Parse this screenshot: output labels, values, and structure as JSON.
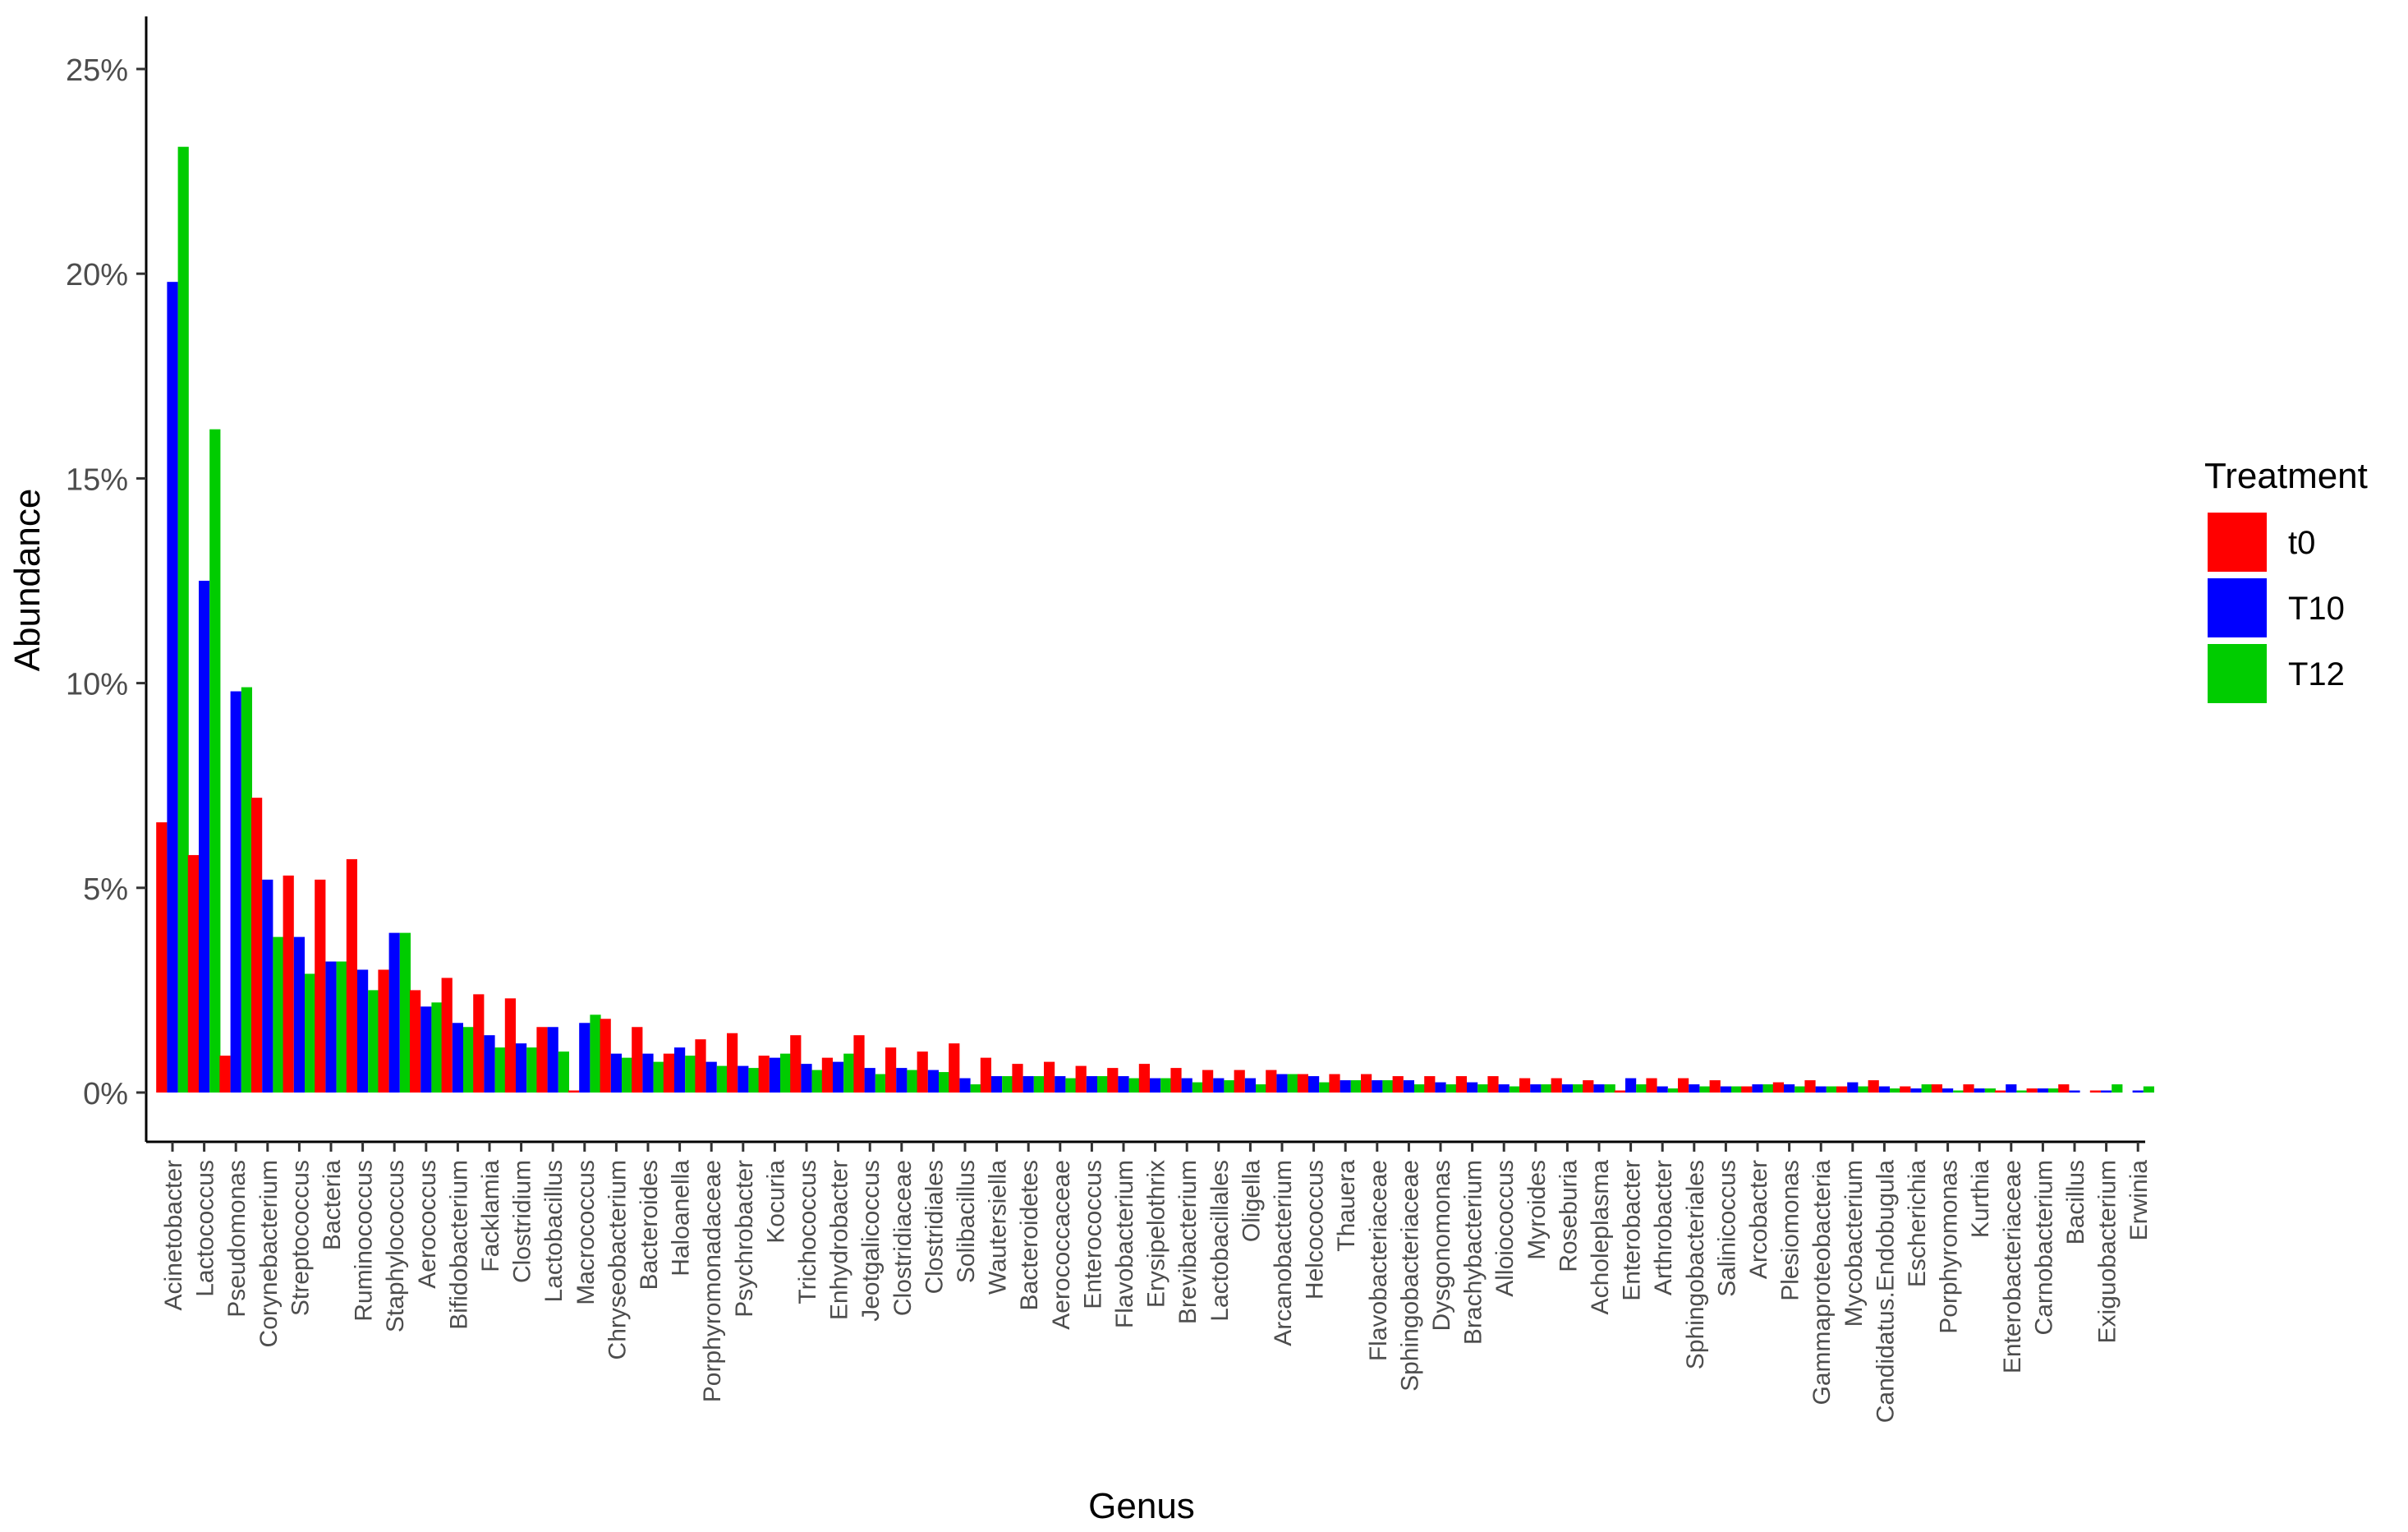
{
  "chart_data": {
    "type": "bar",
    "xlabel": "Genus",
    "ylabel": "Abundance",
    "ylim": [
      0,
      25
    ],
    "yticks": [
      0,
      5,
      10,
      15,
      20,
      25
    ],
    "yticks_labels": [
      "0%",
      "5%",
      "10%",
      "15%",
      "20%",
      "25%"
    ],
    "grid": false,
    "legend": {
      "title": "Treatment",
      "position": "right"
    },
    "categories": [
      "Acinetobacter",
      "Lactococcus",
      "Pseudomonas",
      "Corynebacterium",
      "Streptococcus",
      "Bacteria",
      "Ruminococcus",
      "Staphylococcus",
      "Aerococcus",
      "Bifidobacterium",
      "Facklamia",
      "Clostridium",
      "Lactobacillus",
      "Macrococcus",
      "Chryseobacterium",
      "Bacteroides",
      "Haloanella",
      "Porphyromonadaceae",
      "Psychrobacter",
      "Kocuria",
      "Trichococcus",
      "Enhydrobacter",
      "Jeotgalicoccus",
      "Clostridiaceae",
      "Clostridiales",
      "Solibacillus",
      "Wautersiella",
      "Bacteroidetes",
      "Aerococcaceae",
      "Enterococcus",
      "Flavobacterium",
      "Erysipelothrix",
      "Brevibacterium",
      "Lactobacillales",
      "Oligella",
      "Arcanobacterium",
      "Helcococcus",
      "Thauera",
      "Flavobacteriaceae",
      "Sphingobacteriaceae",
      "Dysgonomonas",
      "Brachybacterium",
      "Alloiococcus",
      "Myroides",
      "Roseburia",
      "Acholeplasma",
      "Enterobacter",
      "Arthrobacter",
      "Sphingobacteriales",
      "Salinicoccus",
      "Arcobacter",
      "Plesiomonas",
      "Gammaproteobacteria",
      "Mycobacterium",
      "Candidatus.Endobugula",
      "Escherichia",
      "Porphyromonas",
      "Kurthia",
      "Enterobacteriaceae",
      "Carnobacterium",
      "Bacillus",
      "Exiguobacterium",
      "Erwinia"
    ],
    "series": [
      {
        "name": "t0",
        "color": "#ff0000",
        "values": [
          6.6,
          5.8,
          0.9,
          7.2,
          5.3,
          5.2,
          5.7,
          3.0,
          2.5,
          2.8,
          2.4,
          2.3,
          1.6,
          0.05,
          1.8,
          1.6,
          0.95,
          1.3,
          1.45,
          0.9,
          1.4,
          0.85,
          1.4,
          1.1,
          1.0,
          1.2,
          0.85,
          0.7,
          0.75,
          0.65,
          0.6,
          0.7,
          0.6,
          0.55,
          0.55,
          0.55,
          0.45,
          0.45,
          0.45,
          0.4,
          0.4,
          0.4,
          0.4,
          0.35,
          0.35,
          0.3,
          0.05,
          0.35,
          0.35,
          0.3,
          0.15,
          0.25,
          0.3,
          0.15,
          0.3,
          0.15,
          0.2,
          0.2,
          0.05,
          0.1,
          0.2,
          0.05,
          0.0
        ]
      },
      {
        "name": "T10",
        "color": "#0000ff",
        "values": [
          19.8,
          12.5,
          9.8,
          5.2,
          3.8,
          3.2,
          3.0,
          3.9,
          2.1,
          1.7,
          1.4,
          1.2,
          1.6,
          1.7,
          0.95,
          0.95,
          1.1,
          0.75,
          0.65,
          0.85,
          0.7,
          0.75,
          0.6,
          0.6,
          0.55,
          0.35,
          0.4,
          0.4,
          0.4,
          0.4,
          0.4,
          0.35,
          0.35,
          0.35,
          0.35,
          0.45,
          0.4,
          0.3,
          0.3,
          0.3,
          0.25,
          0.25,
          0.2,
          0.2,
          0.2,
          0.2,
          0.35,
          0.15,
          0.2,
          0.15,
          0.2,
          0.2,
          0.15,
          0.25,
          0.15,
          0.1,
          0.1,
          0.1,
          0.2,
          0.1,
          0.05,
          0.05,
          0.05
        ]
      },
      {
        "name": "T12",
        "color": "#00cc00",
        "values": [
          23.1,
          16.2,
          9.9,
          3.8,
          2.9,
          3.2,
          2.5,
          3.9,
          2.2,
          1.6,
          1.1,
          1.1,
          1.0,
          1.9,
          0.85,
          0.75,
          0.9,
          0.65,
          0.6,
          0.95,
          0.55,
          0.95,
          0.45,
          0.55,
          0.5,
          0.2,
          0.4,
          0.4,
          0.35,
          0.4,
          0.35,
          0.35,
          0.25,
          0.3,
          0.2,
          0.45,
          0.25,
          0.3,
          0.3,
          0.2,
          0.2,
          0.2,
          0.15,
          0.2,
          0.2,
          0.2,
          0.2,
          0.1,
          0.15,
          0.15,
          0.2,
          0.15,
          0.15,
          0.15,
          0.1,
          0.2,
          0.05,
          0.1,
          0.05,
          0.1,
          0.0,
          0.2,
          0.15
        ]
      }
    ]
  }
}
